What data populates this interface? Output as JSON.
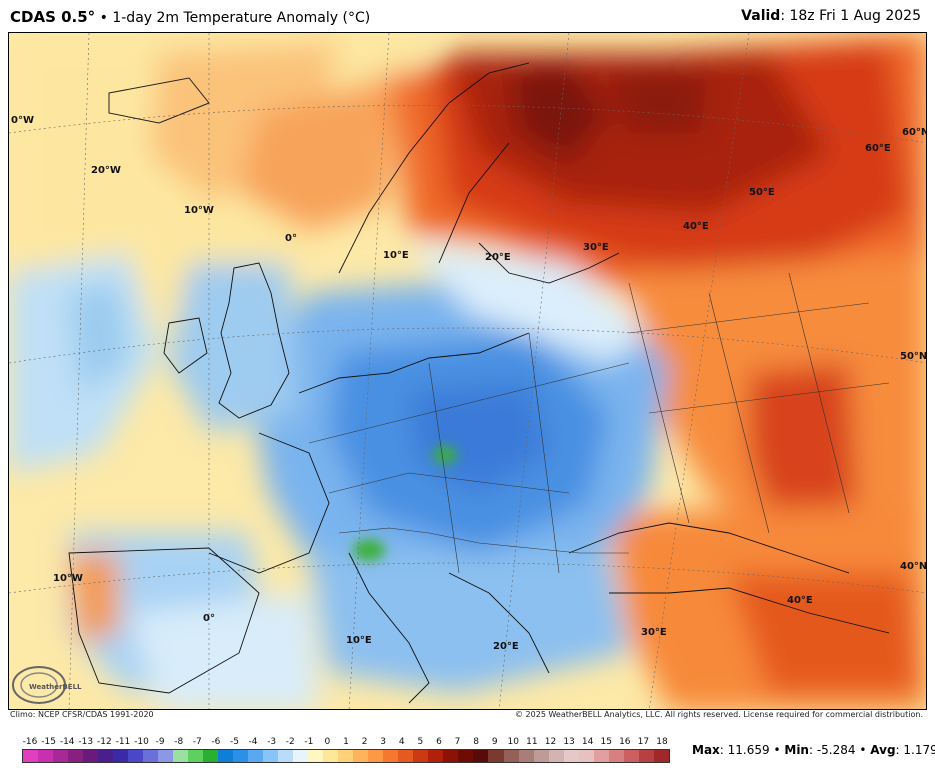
{
  "header": {
    "product": "CDAS 0.5°",
    "separator": "•",
    "title": "1-day 2m Temperature Anomaly (°C)",
    "valid_label": "Valid",
    "valid_value": ": 18z Fri 1 Aug 2025"
  },
  "map": {
    "graticule_labels": {
      "lon_0w_top": "0°W",
      "lon_20w": "20°W",
      "lon_10w_top": "10°W",
      "lon_0_top": "0°",
      "lon_10e_top": "10°E",
      "lon_20e_top": "20°E",
      "lon_30e_top": "30°E",
      "lon_40e_top": "40°E",
      "lon_50e_top": "50°E",
      "lat_60e": "60°E",
      "lat_60n": "60°N",
      "lat_50n": "50°N",
      "lat_40n": "40°N",
      "lon_10w_bottom": "10°W",
      "lon_0_bottom": "0°",
      "lon_10e_bottom": "10°E",
      "lon_20e_bottom": "20°E",
      "lon_30e_bottom": "30°E",
      "lon_40e_bottom": "40°E"
    },
    "logo_text": "WeatherBELL"
  },
  "footer": {
    "climo": "Climo: NCEP CFSR/CDAS 1991-2020",
    "copyright": "© 2025 WeatherBELL Analytics, LLC. All rights reserved. License required for commercial distribution.",
    "stats": {
      "max_label": "Max",
      "max_value": ": 11.659",
      "min_label": "Min",
      "min_value": ": -5.284",
      "avg_label": "Avg",
      "avg_value": ": 1.179",
      "sep": "•"
    }
  },
  "colorbar": {
    "ticks": [
      "-16",
      "-15",
      "-14",
      "-13",
      "-12",
      "-11",
      "-10",
      "-9",
      "-8",
      "-7",
      "-6",
      "-5",
      "-4",
      "-3",
      "-2",
      "-1",
      "0",
      "1",
      "2",
      "3",
      "4",
      "5",
      "6",
      "7",
      "8",
      "9",
      "10",
      "11",
      "12",
      "13",
      "14",
      "15",
      "16",
      "17",
      "18"
    ],
    "colors": [
      "#e040c0",
      "#c830b0",
      "#a82898",
      "#882080",
      "#6a1a7a",
      "#4a1e8c",
      "#3a2aa8",
      "#4a48c8",
      "#6a70d8",
      "#8c98e4",
      "#9ae0a0",
      "#5ed060",
      "#28b030",
      "#0e7fd8",
      "#2a90e8",
      "#5aa8f0",
      "#88c4f6",
      "#b8dcfa",
      "#e8f4fc",
      "#fff7c0",
      "#ffe79a",
      "#ffd27a",
      "#ffb45c",
      "#ff9844",
      "#f5782e",
      "#e55a20",
      "#cc3a12",
      "#b0200a",
      "#8c1206",
      "#6e0c04",
      "#5a0a08",
      "#7a3a30",
      "#946058",
      "#aa7e78",
      "#c09a96",
      "#d4b4b2",
      "#e6c8c8",
      "#e8c0c0",
      "#e0a0a0",
      "#d88080",
      "#cc6060",
      "#b84040",
      "#a02828"
    ],
    "color_count_note": ""
  }
}
